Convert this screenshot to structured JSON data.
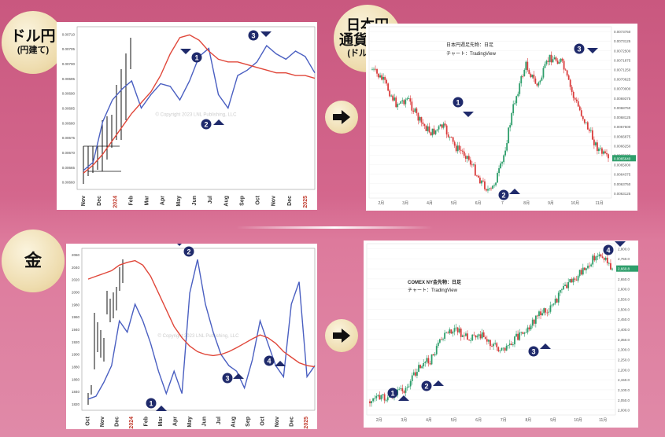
{
  "badges": {
    "usdjpy_title": "ドル円",
    "usdjpy_sub": "(円建て)",
    "jpy_title1": "日本円",
    "jpy_title2": "通貨先物",
    "jpy_sub": "(ドル建て)",
    "gold_title": "金"
  },
  "colors": {
    "blue": "#4a5fc1",
    "red": "#e0473a",
    "navy": "#1f2a6b",
    "up": "#2e9e6b",
    "down": "#d93c3c"
  },
  "chart_data": [
    {
      "type": "line",
      "panel": "usdjpy-cycle",
      "watermark": "© Copyright 2023 LNL Publishing, LLC",
      "x_ticks": [
        "Nov",
        "Dec",
        "2024",
        "Feb",
        "Mar",
        "Apr",
        "May",
        "Jun",
        "Jul",
        "Aug",
        "Sep",
        "Oct",
        "Nov",
        "Dec",
        "2025"
      ],
      "y_ticks": [
        "0.00710",
        "0.00705",
        "0.00700",
        "0.00695",
        "0.00690",
        "0.00685",
        "0.00680",
        "0.00675",
        "0.00670",
        "0.00665",
        "0.00660"
      ],
      "series": [
        {
          "values": [
            0.00662,
            0.00665,
            0.0068,
            0.00688,
            0.00692,
            0.00695,
            0.00685,
            0.0069,
            0.00694,
            0.00693,
            0.00688,
            0.00695,
            0.00704,
            0.00707,
            0.0069,
            0.00685,
            0.00697,
            0.00699,
            0.00702,
            0.00708,
            0.00705,
            0.00703,
            0.00706,
            0.00704,
            0.00698
          ]
        },
        {
          "values": [
            0.00661,
            0.00664,
            0.00668,
            0.00673,
            0.00678,
            0.00683,
            0.00687,
            0.00691,
            0.00697,
            0.00705,
            0.00711,
            0.00712,
            0.0071,
            0.00706,
            0.00703,
            0.00702,
            0.00702,
            0.00701,
            0.007,
            0.00699,
            0.00698,
            0.00698,
            0.00697,
            0.00697,
            0.00696
          ]
        }
      ],
      "markers": [
        "1",
        "2",
        "3"
      ]
    },
    {
      "type": "candlestick",
      "panel": "jpy-futures",
      "header": "日本円週足先物：日足",
      "source": "チャート：TradingView",
      "x_ticks": [
        "2月",
        "3月",
        "4月",
        "5月",
        "6月",
        "7",
        "8月",
        "9月",
        "10月",
        "11月"
      ],
      "y_ticks": [
        "0.0073750",
        "0.0073125",
        "0.0072500",
        "0.0071875",
        "0.0071250",
        "0.0070625",
        "0.0070000",
        "0.0069375",
        "0.0068750",
        "0.0068125",
        "0.0067500",
        "0.0066875",
        "0.0066250",
        "0.0065625",
        "0.0065000",
        "0.0064375",
        "0.0063750",
        "0.0063125"
      ],
      "last_price": "0.0065640",
      "markers": [
        "1",
        "2",
        "3"
      ]
    },
    {
      "type": "line",
      "panel": "gold-cycle",
      "watermark": "© Copyright 2023 LNL Publishing, LLC",
      "x_ticks": [
        "Oct",
        "Nov",
        "Dec",
        "2024",
        "Feb",
        "Mar",
        "Apr",
        "May",
        "Jun",
        "Jul",
        "Aug",
        "Sep",
        "Oct",
        "Nov",
        "Dec",
        "2025"
      ],
      "y_ticks": [
        "2060",
        "2040",
        "2020",
        "2000",
        "1980",
        "1960",
        "1940",
        "1920",
        "1900",
        "1880",
        "1860",
        "1840",
        "1820"
      ],
      "series": [
        {
          "values": [
            1820,
            1825,
            1850,
            1880,
            1960,
            1940,
            1990,
            1960,
            1920,
            1870,
            1830,
            1870,
            1830,
            2010,
            2070,
            1990,
            1940,
            1900,
            1880,
            1870,
            1840,
            1890,
            1960,
            1920,
            1880,
            1860,
            1990,
            2030,
            1860,
            1880
          ]
        },
        {
          "values": [
            2035,
            2040,
            2045,
            2050,
            2060,
            2065,
            2068,
            2060,
            2040,
            2010,
            1980,
            1950,
            1930,
            1915,
            1905,
            1900,
            1898,
            1900,
            1905,
            1912,
            1920,
            1928,
            1935,
            1930,
            1920,
            1905,
            1895,
            1885,
            1880,
            1878
          ]
        }
      ],
      "markers": [
        "1",
        "2",
        "3",
        "4"
      ]
    },
    {
      "type": "candlestick",
      "panel": "gold-futures",
      "header": "COMEX NY金先物：日足",
      "source": "チャート：TradingView",
      "x_ticks": [
        "2月",
        "3月",
        "4月",
        "5月",
        "6月",
        "7月",
        "8月",
        "9月",
        "10月",
        "11月"
      ],
      "y_ticks": [
        "2,800.0",
        "2,750.0",
        "2,700.0",
        "2,650.0",
        "2,600.0",
        "2,550.0",
        "2,500.0",
        "2,450.0",
        "2,400.0",
        "2,350.0",
        "2,300.0",
        "2,250.0",
        "2,200.0",
        "2,150.0",
        "2,100.0",
        "2,050.0",
        "2,000.0"
      ],
      "last_price": "2,660.8",
      "markers": [
        "1",
        "2",
        "3",
        "4"
      ]
    }
  ]
}
